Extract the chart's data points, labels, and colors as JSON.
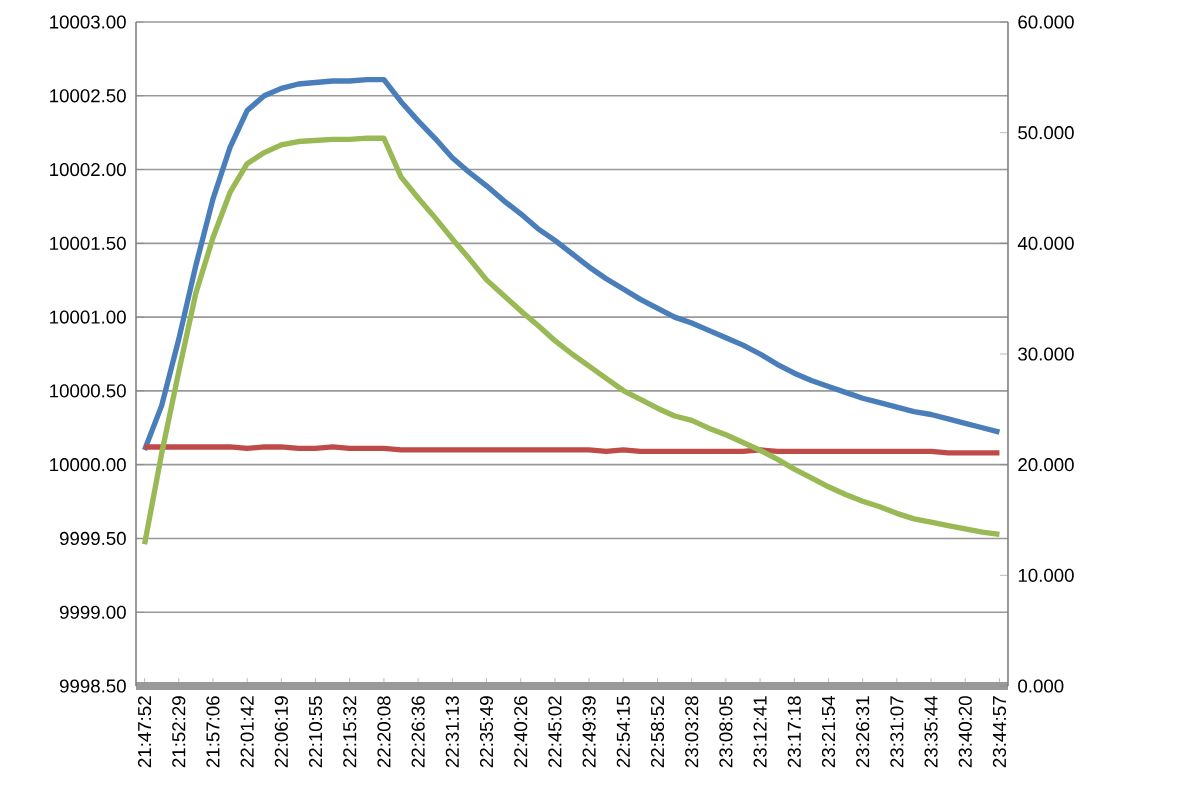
{
  "chart_data": {
    "type": "line",
    "categories": [
      "21:47:52",
      null,
      "21:52:29",
      null,
      "21:57:06",
      null,
      "22:01:42",
      null,
      "22:06:19",
      null,
      "22:10:55",
      null,
      "22:15:32",
      null,
      "22:20:08",
      null,
      "22:26:36",
      null,
      "22:31:13",
      null,
      "22:35:49",
      null,
      "22:40:26",
      null,
      "22:45:02",
      null,
      "22:49:39",
      null,
      "22:54:15",
      null,
      "22:58:52",
      null,
      "23:03:28",
      null,
      "23:08:05",
      null,
      "23:12:41",
      null,
      "23:17:18",
      null,
      "23:21:54",
      null,
      "23:26:31",
      null,
      "23:31:07",
      null,
      "23:35:44",
      null,
      "23:40:20",
      null,
      "23:44:57"
    ],
    "series": [
      {
        "color": "#4a7ebb",
        "values": [
          10000.1,
          10000.4,
          10000.85,
          10001.35,
          10001.8,
          10002.15,
          10002.4,
          10002.5,
          10002.55,
          10002.58,
          10002.59,
          10002.6,
          10002.6,
          10002.61,
          10002.61,
          10002.46,
          10002.33,
          10002.21,
          10002.08,
          10001.98,
          10001.89,
          10001.79,
          10001.7,
          10001.6,
          10001.52,
          10001.43,
          10001.34,
          10001.26,
          10001.19,
          10001.12,
          10001.06,
          10001.0,
          10000.96,
          10000.91,
          10000.86,
          10000.81,
          10000.75,
          10000.68,
          10000.62,
          10000.57,
          10000.53,
          10000.49,
          10000.45,
          10000.42,
          10000.39,
          10000.36,
          10000.34,
          10000.31,
          10000.28,
          10000.25,
          10000.22
        ]
      },
      {
        "color": "#be4b48",
        "values": [
          10000.12,
          10000.12,
          10000.12,
          10000.12,
          10000.12,
          10000.12,
          10000.11,
          10000.12,
          10000.12,
          10000.11,
          10000.11,
          10000.12,
          10000.11,
          10000.11,
          10000.11,
          10000.1,
          10000.1,
          10000.1,
          10000.1,
          10000.1,
          10000.1,
          10000.1,
          10000.1,
          10000.1,
          10000.1,
          10000.1,
          10000.1,
          10000.09,
          10000.1,
          10000.09,
          10000.09,
          10000.09,
          10000.09,
          10000.09,
          10000.09,
          10000.09,
          10000.1,
          10000.09,
          10000.09,
          10000.09,
          10000.09,
          10000.09,
          10000.09,
          10000.09,
          10000.09,
          10000.09,
          10000.09,
          10000.08,
          10000.08,
          10000.08,
          10000.08
        ]
      },
      {
        "color": "#98b954",
        "axis": "y2",
        "values": [
          12.8,
          21.0,
          28.4,
          35.5,
          40.5,
          44.6,
          47.2,
          48.2,
          48.9,
          49.2,
          49.3,
          49.4,
          49.4,
          49.5,
          49.5,
          46.0,
          44.1,
          42.3,
          40.4,
          38.6,
          36.7,
          35.3,
          33.9,
          32.6,
          31.2,
          30.0,
          28.9,
          27.8,
          26.7,
          25.9,
          25.1,
          24.4,
          24.0,
          23.3,
          22.7,
          22.0,
          21.3,
          20.5,
          19.6,
          18.8,
          18.0,
          17.3,
          16.7,
          16.2,
          15.6,
          15.1,
          14.8,
          14.5,
          14.2,
          13.9,
          13.7
        ]
      }
    ],
    "ylim": [
      9998.5,
      10003
    ],
    "yticks": [
      {
        "value": 9998.5,
        "label": "9998.50"
      },
      {
        "value": 9999,
        "label": "9999.00"
      },
      {
        "value": 9999.5,
        "label": "9999.50"
      },
      {
        "value": 10000,
        "label": "10000.00"
      },
      {
        "value": 10000.5,
        "label": "10000.50"
      },
      {
        "value": 10001,
        "label": "10001.00"
      },
      {
        "value": 10001.5,
        "label": "10001.50"
      },
      {
        "value": 10002,
        "label": "10002.00"
      },
      {
        "value": 10002.5,
        "label": "10002.50"
      },
      {
        "value": 10003,
        "label": "10003.00"
      }
    ],
    "y2lim": [
      0,
      60
    ],
    "y2ticks": [
      {
        "value": 0,
        "label": "0.000"
      },
      {
        "value": 10,
        "label": "10.000"
      },
      {
        "value": 20,
        "label": "20.000"
      },
      {
        "value": 30,
        "label": "30.000"
      },
      {
        "value": 40,
        "label": "40.000"
      },
      {
        "value": 50,
        "label": "50.000"
      },
      {
        "value": 60,
        "label": "60.000"
      }
    ],
    "grid": "y",
    "marker": "none",
    "line_style": "solid"
  }
}
